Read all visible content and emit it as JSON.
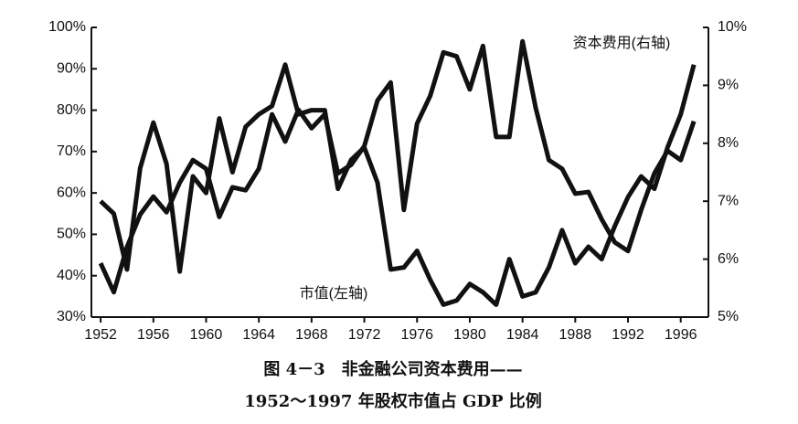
{
  "chart_data": {
    "type": "line",
    "title": "图 4－3　非金融公司资本费用——",
    "subtitle": "1952～1997 年股权市值占 GDP 比例",
    "x": [
      1952,
      1953,
      1954,
      1955,
      1956,
      1957,
      1958,
      1959,
      1960,
      1961,
      1962,
      1963,
      1964,
      1965,
      1966,
      1967,
      1968,
      1969,
      1970,
      1971,
      1972,
      1973,
      1974,
      1975,
      1976,
      1977,
      1978,
      1979,
      1980,
      1981,
      1982,
      1983,
      1984,
      1985,
      1986,
      1987,
      1988,
      1989,
      1990,
      1991,
      1992,
      1993,
      1994,
      1995,
      1996,
      1997
    ],
    "series": [
      {
        "name": "市值(左轴)",
        "color": "#111111",
        "axis": "y",
        "values": [
          58,
          55,
          41.5,
          66,
          77,
          67,
          41,
          64,
          60,
          78,
          65,
          76,
          79,
          81,
          91,
          79,
          80,
          80,
          61,
          68,
          71,
          62.5,
          41.5,
          42,
          46,
          39,
          33,
          34,
          38,
          36,
          33,
          44,
          35,
          36,
          42,
          51,
          43,
          47,
          44,
          52,
          59,
          64,
          61,
          71,
          79,
          91
        ]
      },
      {
        "name": "资本费用(右轴)",
        "color": "#111111",
        "axis": "y2",
        "values": [
          5.93,
          5.43,
          6.21,
          6.77,
          7.08,
          6.81,
          7.32,
          7.71,
          7.56,
          6.73,
          7.24,
          7.19,
          7.56,
          8.5,
          8.03,
          8.58,
          8.26,
          8.5,
          7.48,
          7.63,
          7.95,
          8.74,
          9.05,
          6.85,
          8.34,
          8.82,
          9.57,
          9.5,
          8.93,
          9.68,
          8.11,
          8.11,
          9.76,
          8.61,
          7.71,
          7.56,
          7.13,
          7.16,
          6.69,
          6.29,
          6.14,
          6.85,
          7.48,
          7.87,
          7.71,
          8.38
        ]
      }
    ],
    "xlim": [
      1951.3,
      1998.1
    ],
    "xticks": [
      1952,
      1956,
      1960,
      1964,
      1968,
      1972,
      1976,
      1980,
      1984,
      1988,
      1992,
      1996
    ],
    "ylim": [
      30,
      100
    ],
    "yticks": [
      {
        "value": 30,
        "label": "30%"
      },
      {
        "value": 40,
        "label": "40%"
      },
      {
        "value": 50,
        "label": "50%"
      },
      {
        "value": 60,
        "label": "60%"
      },
      {
        "value": 70,
        "label": "70%"
      },
      {
        "value": 80,
        "label": "80%"
      },
      {
        "value": 90,
        "label": "90%"
      },
      {
        "value": 100,
        "label": "100%"
      }
    ],
    "y2lim": [
      5,
      10
    ],
    "y2ticks": [
      {
        "value": 5,
        "label": "5%"
      },
      {
        "value": 6,
        "label": "6%"
      },
      {
        "value": 7,
        "label": "7%"
      },
      {
        "value": 8,
        "label": "8%"
      },
      {
        "value": 9,
        "label": "9%"
      },
      {
        "value": 10,
        "label": "10%"
      }
    ],
    "grid": false
  }
}
